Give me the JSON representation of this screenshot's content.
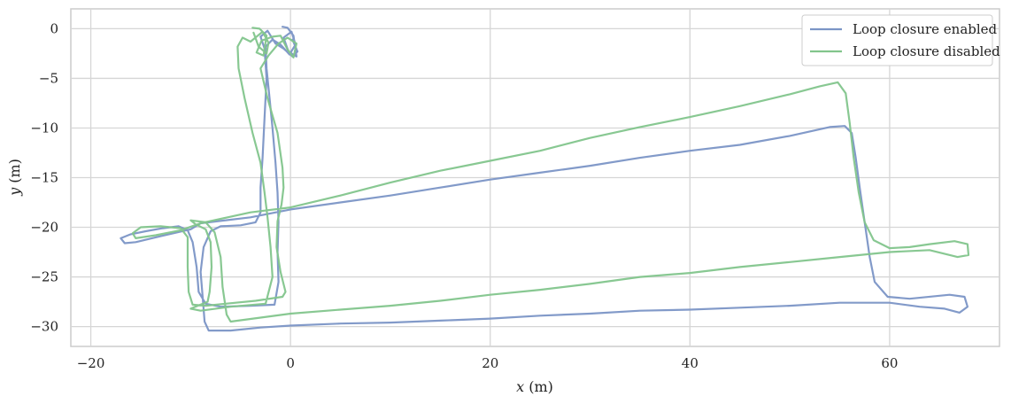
{
  "chart_data": {
    "type": "line",
    "xlabel_var": "x",
    "xlabel_unit": "(m)",
    "ylabel_var": "y",
    "ylabel_unit": "(m)",
    "xlim": [
      -22,
      71
    ],
    "ylim": [
      -32,
      2
    ],
    "xticks": [
      -20,
      0,
      20,
      40,
      60
    ],
    "xtick_labels": [
      "−20",
      "0",
      "20",
      "40",
      "60"
    ],
    "yticks": [
      0,
      -5,
      -10,
      -15,
      -20,
      -25,
      -30
    ],
    "ytick_labels": [
      "0",
      "−5",
      "−10",
      "−15",
      "−20",
      "−25",
      "−30"
    ],
    "grid": true,
    "legend_position": "top-right",
    "series": [
      {
        "name": "Loop closure enabled",
        "color": "#7b95c6",
        "points": [
          [
            -0.8,
            0.2
          ],
          [
            -0.3,
            0.1
          ],
          [
            0.3,
            -0.7
          ],
          [
            0.6,
            -2.8
          ],
          [
            -0.2,
            -2.3
          ],
          [
            -0.7,
            -0.9
          ],
          [
            0.1,
            -0.3
          ],
          [
            0.5,
            -1.6
          ],
          [
            -0.1,
            -2.6
          ],
          [
            -1.0,
            -1.6
          ],
          [
            -1.8,
            -1.1
          ],
          [
            -2.5,
            -1.8
          ],
          [
            -2.4,
            -4.0
          ],
          [
            -2.1,
            -7.0
          ],
          [
            -1.8,
            -10.0
          ],
          [
            -1.5,
            -13.5
          ],
          [
            -1.3,
            -16.5
          ],
          [
            -1.2,
            -19.5
          ],
          [
            -1.3,
            -22.5
          ],
          [
            -1.2,
            -25.5
          ],
          [
            -1.6,
            -27.8
          ],
          [
            -4.0,
            -27.9
          ],
          [
            -7.0,
            -28.0
          ],
          [
            -8.5,
            -27.7
          ],
          [
            -9.2,
            -26.5
          ],
          [
            -9.4,
            -24.0
          ],
          [
            -9.8,
            -21.5
          ],
          [
            -10.3,
            -20.3
          ],
          [
            -11.2,
            -19.9
          ],
          [
            -12.8,
            -20.1
          ],
          [
            -14.5,
            -20.4
          ],
          [
            -16.0,
            -20.7
          ],
          [
            -17.0,
            -21.1
          ],
          [
            -16.6,
            -21.6
          ],
          [
            -15.5,
            -21.5
          ],
          [
            -13.0,
            -20.9
          ],
          [
            -10.0,
            -20.2
          ],
          [
            -9.0,
            -19.6
          ],
          [
            -4.0,
            -19.0
          ],
          [
            0.0,
            -18.2
          ],
          [
            5.0,
            -17.5
          ],
          [
            10.0,
            -16.8
          ],
          [
            15.0,
            -16.0
          ],
          [
            20.0,
            -15.2
          ],
          [
            25.0,
            -14.5
          ],
          [
            30.0,
            -13.8
          ],
          [
            35.0,
            -13.0
          ],
          [
            40.0,
            -12.3
          ],
          [
            45.0,
            -11.7
          ],
          [
            50.0,
            -10.8
          ],
          [
            54.0,
            -9.9
          ],
          [
            55.5,
            -9.8
          ],
          [
            56.2,
            -10.5
          ],
          [
            56.6,
            -13.0
          ],
          [
            57.0,
            -16.0
          ],
          [
            57.5,
            -19.5
          ],
          [
            58.0,
            -23.0
          ],
          [
            58.5,
            -25.5
          ],
          [
            59.8,
            -27.0
          ],
          [
            62.0,
            -27.2
          ],
          [
            66.0,
            -26.8
          ],
          [
            67.5,
            -27.0
          ],
          [
            67.8,
            -28.0
          ],
          [
            67.0,
            -28.6
          ],
          [
            65.5,
            -28.2
          ],
          [
            63.0,
            -28.0
          ],
          [
            60.0,
            -27.6
          ],
          [
            55.0,
            -27.6
          ],
          [
            50.0,
            -27.9
          ],
          [
            45.0,
            -28.1
          ],
          [
            40.0,
            -28.3
          ],
          [
            35.0,
            -28.4
          ],
          [
            30.0,
            -28.7
          ],
          [
            25.0,
            -28.9
          ],
          [
            20.0,
            -29.2
          ],
          [
            15.0,
            -29.4
          ],
          [
            10.0,
            -29.6
          ],
          [
            5.0,
            -29.7
          ],
          [
            0.0,
            -29.9
          ],
          [
            -3.0,
            -30.1
          ],
          [
            -6.0,
            -30.4
          ],
          [
            -8.2,
            -30.4
          ],
          [
            -8.6,
            -29.5
          ],
          [
            -8.8,
            -27.0
          ],
          [
            -9.0,
            -24.5
          ],
          [
            -8.7,
            -22.0
          ],
          [
            -8.0,
            -20.4
          ],
          [
            -7.0,
            -19.9
          ],
          [
            -5.0,
            -19.8
          ],
          [
            -3.5,
            -19.5
          ],
          [
            -3.0,
            -18.5
          ],
          [
            -3.0,
            -16.0
          ],
          [
            -2.8,
            -13.0
          ],
          [
            -2.6,
            -9.0
          ],
          [
            -2.4,
            -5.0
          ],
          [
            -2.6,
            -2.0
          ],
          [
            -3.0,
            -0.8
          ],
          [
            -2.3,
            -0.2
          ],
          [
            -1.5,
            -1.5
          ],
          [
            -0.7,
            -2.0
          ],
          [
            0.2,
            -2.8
          ],
          [
            0.7,
            -2.3
          ],
          [
            0.2,
            -1.1
          ]
        ]
      },
      {
        "name": "Loop closure disabled",
        "color": "#82c58c",
        "points": [
          [
            -3.8,
            0.1
          ],
          [
            -3.1,
            0.0
          ],
          [
            -2.4,
            -0.7
          ],
          [
            -2.7,
            -2.7
          ],
          [
            -3.4,
            -2.4
          ],
          [
            -2.9,
            -1.2
          ],
          [
            -1.8,
            -0.8
          ],
          [
            -1.0,
            -0.7
          ],
          [
            -0.3,
            -2.1
          ],
          [
            0.3,
            -2.9
          ],
          [
            0.6,
            -1.5
          ],
          [
            -0.3,
            -0.9
          ],
          [
            -1.2,
            -1.5
          ],
          [
            -2.2,
            -2.7
          ],
          [
            -3.0,
            -4.0
          ],
          [
            -2.3,
            -7.0
          ],
          [
            -1.3,
            -10.5
          ],
          [
            -0.8,
            -14.0
          ],
          [
            -0.7,
            -16.0
          ],
          [
            -0.9,
            -17.7
          ],
          [
            -1.3,
            -19.4
          ],
          [
            -1.4,
            -22.0
          ],
          [
            -1.0,
            -24.5
          ],
          [
            -0.5,
            -26.5
          ],
          [
            -0.8,
            -27.0
          ],
          [
            -3.5,
            -27.4
          ],
          [
            -6.5,
            -27.7
          ],
          [
            -8.5,
            -27.9
          ],
          [
            -9.8,
            -27.8
          ],
          [
            -10.2,
            -26.5
          ],
          [
            -10.3,
            -24.0
          ],
          [
            -10.3,
            -21.0
          ],
          [
            -11.0,
            -20.1
          ],
          [
            -13.0,
            -19.9
          ],
          [
            -15.0,
            -20.0
          ],
          [
            -15.8,
            -20.6
          ],
          [
            -15.5,
            -21.1
          ],
          [
            -13.5,
            -20.8
          ],
          [
            -11.0,
            -20.3
          ],
          [
            -9.0,
            -19.6
          ],
          [
            -4.0,
            -18.5
          ],
          [
            0.0,
            -18.0
          ],
          [
            5.0,
            -16.8
          ],
          [
            10.0,
            -15.5
          ],
          [
            15.0,
            -14.3
          ],
          [
            20.0,
            -13.3
          ],
          [
            25.0,
            -12.3
          ],
          [
            30.0,
            -11.0
          ],
          [
            35.0,
            -9.9
          ],
          [
            40.0,
            -8.9
          ],
          [
            45.0,
            -7.8
          ],
          [
            50.0,
            -6.6
          ],
          [
            53.0,
            -5.8
          ],
          [
            54.8,
            -5.4
          ],
          [
            55.6,
            -6.5
          ],
          [
            56.0,
            -9.5
          ],
          [
            56.4,
            -13.0
          ],
          [
            56.9,
            -16.5
          ],
          [
            57.5,
            -19.5
          ],
          [
            58.4,
            -21.3
          ],
          [
            60.0,
            -22.1
          ],
          [
            62.0,
            -22.0
          ],
          [
            64.0,
            -21.7
          ],
          [
            66.5,
            -21.4
          ],
          [
            67.8,
            -21.7
          ],
          [
            67.9,
            -22.8
          ],
          [
            66.8,
            -23.0
          ],
          [
            64.0,
            -22.3
          ],
          [
            60.0,
            -22.5
          ],
          [
            55.0,
            -23.0
          ],
          [
            50.0,
            -23.5
          ],
          [
            45.0,
            -24.0
          ],
          [
            40.0,
            -24.6
          ],
          [
            35.0,
            -25.0
          ],
          [
            30.0,
            -25.7
          ],
          [
            25.0,
            -26.3
          ],
          [
            20.0,
            -26.8
          ],
          [
            15.0,
            -27.4
          ],
          [
            10.0,
            -27.9
          ],
          [
            5.0,
            -28.3
          ],
          [
            0.0,
            -28.7
          ],
          [
            -3.0,
            -29.1
          ],
          [
            -6.0,
            -29.5
          ],
          [
            -6.4,
            -28.8
          ],
          [
            -6.8,
            -26.0
          ],
          [
            -7.0,
            -23.0
          ],
          [
            -7.6,
            -20.5
          ],
          [
            -8.5,
            -19.5
          ],
          [
            -10.0,
            -19.3
          ],
          [
            -9.5,
            -19.7
          ],
          [
            -8.5,
            -20.2
          ],
          [
            -8.0,
            -21.5
          ],
          [
            -7.9,
            -24.0
          ],
          [
            -8.1,
            -26.5
          ],
          [
            -8.3,
            -27.5
          ],
          [
            -10.0,
            -28.2
          ],
          [
            -9.0,
            -28.4
          ],
          [
            -6.0,
            -28.0
          ],
          [
            -2.5,
            -27.7
          ],
          [
            -1.8,
            -25.0
          ],
          [
            -2.0,
            -22.0
          ],
          [
            -2.3,
            -19.0
          ],
          [
            -2.6,
            -16.5
          ],
          [
            -3.0,
            -13.5
          ],
          [
            -3.8,
            -10.5
          ],
          [
            -4.6,
            -7.0
          ],
          [
            -5.2,
            -4.0
          ],
          [
            -5.3,
            -1.8
          ],
          [
            -4.8,
            -0.9
          ],
          [
            -4.0,
            -1.3
          ],
          [
            -2.8,
            -0.3
          ],
          [
            -2.2,
            -1.4
          ],
          [
            -2.4,
            -2.5
          ],
          [
            -3.2,
            -1.8
          ],
          [
            -3.7,
            -0.4
          ]
        ]
      }
    ]
  }
}
